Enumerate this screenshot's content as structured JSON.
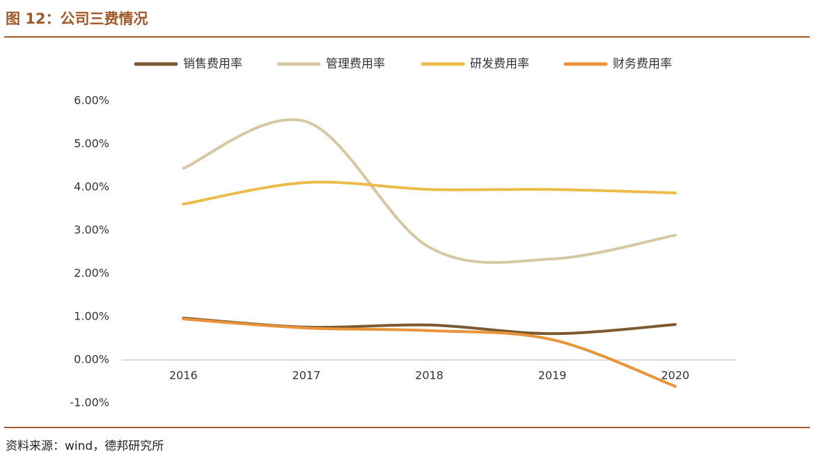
{
  "chart_data": {
    "type": "line",
    "title": "图 12：公司三费情况",
    "source": "资料来源：wind，德邦研究所",
    "categories": [
      "2016",
      "2017",
      "2018",
      "2019",
      "2020"
    ],
    "series": [
      {
        "name": "销售费用率",
        "color": "#7b5a32",
        "values": [
          0.97,
          0.76,
          0.81,
          0.61,
          0.82
        ]
      },
      {
        "name": "管理费用率",
        "color": "#d6c8a2",
        "values": [
          4.44,
          5.52,
          2.61,
          2.34,
          2.89
        ]
      },
      {
        "name": "研发费用率",
        "color": "#ecbb4a",
        "values": [
          3.61,
          4.11,
          3.95,
          3.95,
          3.87
        ]
      },
      {
        "name": "财务费用率",
        "color": "#e9943a",
        "values": [
          0.95,
          0.74,
          0.68,
          0.47,
          -0.61
        ]
      }
    ],
    "ylim": [
      -1,
      6
    ],
    "yticks": [
      {
        "value": -1,
        "label": "-1.00%"
      },
      {
        "value": 0,
        "label": "0.00%"
      },
      {
        "value": 1,
        "label": "1.00%"
      },
      {
        "value": 2,
        "label": "2.00%"
      },
      {
        "value": 3,
        "label": "3.00%"
      },
      {
        "value": 4,
        "label": "4.00%"
      },
      {
        "value": 5,
        "label": "5.00%"
      },
      {
        "value": 6,
        "label": "6.00%"
      }
    ],
    "legend": "top"
  }
}
